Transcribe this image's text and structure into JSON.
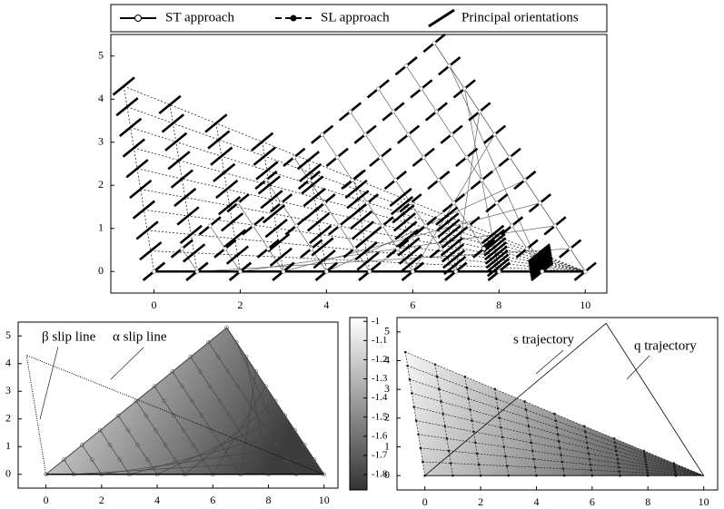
{
  "legend": {
    "items": [
      "ST approach",
      "SL approach",
      "Principal orientations"
    ]
  },
  "top_plot": {
    "xlim": [
      -1,
      10.5
    ],
    "ylim": [
      -0.5,
      5.5
    ],
    "xticks": [
      0,
      2,
      4,
      6,
      8,
      10
    ],
    "yticks": [
      0,
      1,
      2,
      3,
      4,
      5
    ]
  },
  "bottom_left_plot": {
    "xlim": [
      -1,
      10.5
    ],
    "ylim": [
      -0.5,
      5.5
    ],
    "xticks": [
      0,
      2,
      4,
      6,
      8,
      10
    ],
    "yticks": [
      0,
      1,
      2,
      3,
      4,
      5
    ],
    "annotations": [
      "β slip line",
      "α slip line"
    ]
  },
  "colorbar": {
    "lim": [
      -0.98,
      -1.88
    ],
    "ticks": [
      -1,
      -1.1,
      -1.2,
      -1.3,
      -1.4,
      -1.5,
      -1.6,
      -1.7,
      -1.8
    ]
  },
  "bottom_right_plot": {
    "xlim": [
      -1,
      10.5
    ],
    "ylim": [
      -0.5,
      5.5
    ],
    "xticks": [
      0,
      2,
      4,
      6,
      8,
      10
    ],
    "yticks": [
      0,
      1,
      2,
      3,
      4,
      5
    ],
    "annotations": [
      "s trajectory",
      "q trajectory"
    ]
  }
}
